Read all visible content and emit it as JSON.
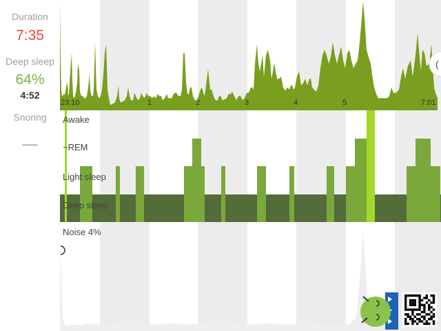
{
  "sidebar": {
    "duration_label": "Duration",
    "duration_value": "7:35",
    "deep_sleep_label": "Deep sleep",
    "deep_sleep_percent": "64%",
    "deep_sleep_time": "4:52",
    "snoring_label": "Snoring",
    "snoring_value": "—"
  },
  "colors": {
    "duration": "#f44336",
    "deep_sleep": "#7cb342",
    "activity": "#7a9e1f",
    "light_band": "#7aa83a",
    "deep_band": "#546b3a",
    "awake_marker": "#a2d92a",
    "stripe": "#ececec",
    "noise": "#eeeeee"
  },
  "chart_data": {
    "type": "area",
    "time_ticks": [
      "23:10",
      "1",
      "2",
      "3",
      "4",
      "5",
      "7:01"
    ],
    "stages": [
      "Awake",
      "~REM",
      "Light sleep",
      "Deep sleep"
    ],
    "noise_label": "Noise 4%",
    "activity": [
      [
        0,
        0.98
      ],
      [
        1,
        0.45
      ],
      [
        2,
        0.18
      ],
      [
        3,
        0.12
      ],
      [
        4,
        0.12
      ],
      [
        5,
        0.14
      ],
      [
        7,
        0.13
      ],
      [
        9,
        0.2
      ],
      [
        11,
        0.25
      ],
      [
        12,
        0.12
      ],
      [
        13,
        0.14
      ],
      [
        15,
        0.35
      ],
      [
        17,
        0.52
      ],
      [
        18,
        0.28
      ],
      [
        19,
        0.12
      ],
      [
        21,
        0.1
      ],
      [
        23,
        0.15
      ],
      [
        25,
        0.24
      ],
      [
        26,
        0.42
      ],
      [
        28,
        0.36
      ],
      [
        29,
        0.16
      ],
      [
        31,
        0.12
      ],
      [
        33,
        0.12
      ],
      [
        35,
        0.1
      ],
      [
        37,
        0.1
      ],
      [
        39,
        0.12
      ],
      [
        41,
        0.2
      ],
      [
        43,
        0.33
      ],
      [
        44,
        0.17
      ],
      [
        46,
        0.12
      ],
      [
        48,
        0.12
      ],
      [
        49,
        0.18
      ],
      [
        51,
        0.62
      ],
      [
        53,
        0.18
      ],
      [
        55,
        0.12
      ],
      [
        57,
        0.1
      ],
      [
        59,
        0.12
      ],
      [
        61,
        0.18
      ],
      [
        63,
        0.32
      ],
      [
        65,
        0.52
      ],
      [
        67,
        0.6
      ],
      [
        68,
        0.4
      ],
      [
        69,
        0.18
      ],
      [
        71,
        0.1
      ],
      [
        73,
        0.04
      ],
      [
        75,
        0.04
      ],
      [
        77,
        0.05
      ],
      [
        80,
        0.06
      ],
      [
        83,
        0.12
      ],
      [
        85,
        0.22
      ],
      [
        86,
        0.1
      ],
      [
        88,
        0.06
      ],
      [
        91,
        0.07
      ],
      [
        94,
        0.08
      ],
      [
        97,
        0.12
      ],
      [
        99,
        0.2
      ],
      [
        101,
        0.12
      ],
      [
        103,
        0.08
      ],
      [
        106,
        0.08
      ],
      [
        108,
        0.15
      ],
      [
        110,
        0.12
      ],
      [
        113,
        0.08
      ],
      [
        116,
        0.1
      ],
      [
        118,
        0.15
      ],
      [
        120,
        0.12
      ],
      [
        123,
        0.1
      ],
      [
        126,
        0.15
      ],
      [
        128,
        0.12
      ],
      [
        131,
        0.12
      ],
      [
        134,
        0.1
      ],
      [
        137,
        0.12
      ],
      [
        139,
        0.1
      ],
      [
        142,
        0.14
      ],
      [
        144,
        0.12
      ],
      [
        147,
        0.12
      ],
      [
        149,
        0.08
      ],
      [
        152,
        0.1
      ],
      [
        155,
        0.14
      ],
      [
        157,
        0.1
      ],
      [
        159,
        0.1
      ],
      [
        162,
        0.1
      ],
      [
        165,
        0.14
      ],
      [
        167,
        0.15
      ],
      [
        169,
        0.15
      ],
      [
        172,
        0.12
      ],
      [
        175,
        0.12
      ],
      [
        177,
        0.18
      ],
      [
        179,
        0.52
      ],
      [
        181,
        0.52
      ],
      [
        183,
        0.25
      ],
      [
        185,
        0.14
      ],
      [
        187,
        0.14
      ],
      [
        189,
        0.2
      ],
      [
        191,
        0.2
      ],
      [
        193,
        0.12
      ],
      [
        196,
        0.08
      ],
      [
        199,
        0.08
      ],
      [
        202,
        0.14
      ],
      [
        204,
        0.18
      ],
      [
        206,
        0.2
      ],
      [
        208,
        0.15
      ],
      [
        210,
        0.12
      ],
      [
        212,
        0.22
      ],
      [
        215,
        0.37
      ],
      [
        218,
        0.18
      ],
      [
        220,
        0.18
      ],
      [
        222,
        0.14
      ],
      [
        224,
        0.1
      ],
      [
        226,
        0.08
      ],
      [
        229,
        0.08
      ],
      [
        231,
        0.12
      ],
      [
        233,
        0.12
      ],
      [
        236,
        0.08
      ],
      [
        239,
        0.09
      ],
      [
        242,
        0.1
      ],
      [
        245,
        0.14
      ],
      [
        248,
        0.14
      ],
      [
        250,
        0.16
      ],
      [
        253,
        0.12
      ],
      [
        256,
        0.08
      ],
      [
        259,
        0.12
      ],
      [
        262,
        0.12
      ],
      [
        265,
        0.08
      ],
      [
        268,
        0.1
      ],
      [
        271,
        0.15
      ],
      [
        274,
        0.15
      ],
      [
        277,
        0.2
      ],
      [
        279,
        0.2
      ],
      [
        281,
        0.18
      ],
      [
        283,
        0.42
      ],
      [
        286,
        0.6
      ],
      [
        288,
        0.42
      ],
      [
        290,
        0.35
      ],
      [
        292,
        0.42
      ],
      [
        294,
        0.5
      ],
      [
        296,
        0.3
      ],
      [
        299,
        0.5
      ],
      [
        302,
        0.55
      ],
      [
        305,
        0.45
      ],
      [
        307,
        0.28
      ],
      [
        309,
        0.35
      ],
      [
        311,
        0.43
      ],
      [
        313,
        0.35
      ],
      [
        315,
        0.28
      ],
      [
        318,
        0.28
      ],
      [
        321,
        0.3
      ],
      [
        324,
        0.2
      ],
      [
        327,
        0.17
      ],
      [
        330,
        0.2
      ],
      [
        333,
        0.18
      ],
      [
        335,
        0.22
      ],
      [
        337,
        0.22
      ],
      [
        339,
        0.18
      ],
      [
        341,
        0.2
      ],
      [
        344,
        0.3
      ],
      [
        347,
        0.35
      ],
      [
        350,
        0.22
      ],
      [
        353,
        0.24
      ],
      [
        356,
        0.28
      ],
      [
        359,
        0.22
      ],
      [
        362,
        0.28
      ],
      [
        364,
        0.28
      ],
      [
        366,
        0.2
      ],
      [
        369,
        0.18
      ],
      [
        372,
        0.16
      ],
      [
        375,
        0.22
      ],
      [
        378,
        0.38
      ],
      [
        381,
        0.5
      ],
      [
        384,
        0.55
      ],
      [
        387,
        0.5
      ],
      [
        390,
        0.42
      ],
      [
        393,
        0.48
      ],
      [
        396,
        0.62
      ],
      [
        399,
        0.5
      ],
      [
        402,
        0.42
      ],
      [
        405,
        0.5
      ],
      [
        408,
        0.58
      ],
      [
        411,
        0.45
      ],
      [
        414,
        0.38
      ],
      [
        417,
        0.52
      ],
      [
        420,
        0.55
      ],
      [
        423,
        0.45
      ],
      [
        426,
        0.38
      ],
      [
        429,
        0.42
      ],
      [
        432,
        0.45
      ],
      [
        435,
        0.62
      ],
      [
        438,
        0.85
      ],
      [
        440,
        1.0
      ],
      [
        442,
        0.85
      ],
      [
        445,
        0.55
      ],
      [
        448,
        0.48
      ],
      [
        451,
        0.42
      ],
      [
        453,
        0.32
      ],
      [
        456,
        0.2
      ],
      [
        459,
        0.14
      ],
      [
        462,
        0.1
      ],
      [
        465,
        0.1
      ],
      [
        469,
        0.1
      ],
      [
        472,
        0.1
      ],
      [
        475,
        0.1
      ],
      [
        478,
        0.12
      ],
      [
        481,
        0.2
      ],
      [
        484,
        0.15
      ],
      [
        488,
        0.15
      ],
      [
        492,
        0.18
      ],
      [
        495,
        0.3
      ],
      [
        498,
        0.38
      ],
      [
        501,
        0.28
      ],
      [
        505,
        0.4
      ],
      [
        509,
        0.45
      ],
      [
        512,
        0.3
      ],
      [
        516,
        0.5
      ],
      [
        519,
        0.7
      ],
      [
        522,
        0.48
      ],
      [
        524,
        0.35
      ],
      [
        526,
        0.55
      ],
      [
        529,
        0.52
      ],
      [
        532,
        0.4
      ],
      [
        536,
        0.42
      ],
      [
        539,
        0.6
      ],
      [
        541,
        0.4
      ],
      [
        543,
        0.2
      ],
      [
        545,
        0.15
      ],
      [
        548,
        0.1
      ]
    ],
    "stage_blocks": [
      {
        "s": 7,
        "e": 10,
        "stage": "awake"
      },
      {
        "s": 29,
        "e": 35,
        "stage": "light"
      },
      {
        "s": 35,
        "e": 47,
        "stage": "light"
      },
      {
        "s": 81,
        "e": 87,
        "stage": "light"
      },
      {
        "s": 110,
        "e": 122,
        "stage": "light"
      },
      {
        "s": 180,
        "e": 210,
        "stage": "light"
      },
      {
        "s": 192,
        "e": 205,
        "stage": "rem"
      },
      {
        "s": 234,
        "e": 240,
        "stage": "light"
      },
      {
        "s": 286,
        "e": 299,
        "stage": "light"
      },
      {
        "s": 333,
        "e": 340,
        "stage": "light"
      },
      {
        "s": 387,
        "e": 398,
        "stage": "light"
      },
      {
        "s": 415,
        "e": 445,
        "stage": "light"
      },
      {
        "s": 428,
        "e": 445,
        "stage": "rem"
      },
      {
        "s": 445,
        "e": 457,
        "stage": "awake"
      },
      {
        "s": 503,
        "e": 552,
        "stage": "light"
      },
      {
        "s": 516,
        "e": 538,
        "stage": "rem"
      }
    ],
    "noise": [
      [
        0,
        0.85
      ],
      [
        2,
        0.5
      ],
      [
        4,
        0.1
      ],
      [
        8,
        0.04
      ],
      [
        14,
        0.04
      ],
      [
        20,
        0.05
      ],
      [
        30,
        0.04
      ],
      [
        40,
        0.06
      ],
      [
        55,
        0.05
      ],
      [
        70,
        0.05
      ],
      [
        90,
        0.06
      ],
      [
        100,
        0.08
      ],
      [
        108,
        0.12
      ],
      [
        112,
        0.06
      ],
      [
        120,
        0.05
      ],
      [
        140,
        0.05
      ],
      [
        160,
        0.06
      ],
      [
        180,
        0.05
      ],
      [
        200,
        0.05
      ],
      [
        220,
        0.06
      ],
      [
        240,
        0.07
      ],
      [
        260,
        0.05
      ],
      [
        280,
        0.05
      ],
      [
        300,
        0.06
      ],
      [
        320,
        0.05
      ],
      [
        340,
        0.05
      ],
      [
        360,
        0.07
      ],
      [
        380,
        0.05
      ],
      [
        400,
        0.05
      ],
      [
        420,
        0.05
      ],
      [
        430,
        0.12
      ],
      [
        436,
        0.55
      ],
      [
        440,
        0.95
      ],
      [
        444,
        0.55
      ],
      [
        448,
        0.12
      ],
      [
        452,
        0.06
      ],
      [
        470,
        0.05
      ],
      [
        490,
        0.06
      ],
      [
        510,
        0.05
      ],
      [
        530,
        0.05
      ],
      [
        548,
        0.05
      ]
    ]
  }
}
